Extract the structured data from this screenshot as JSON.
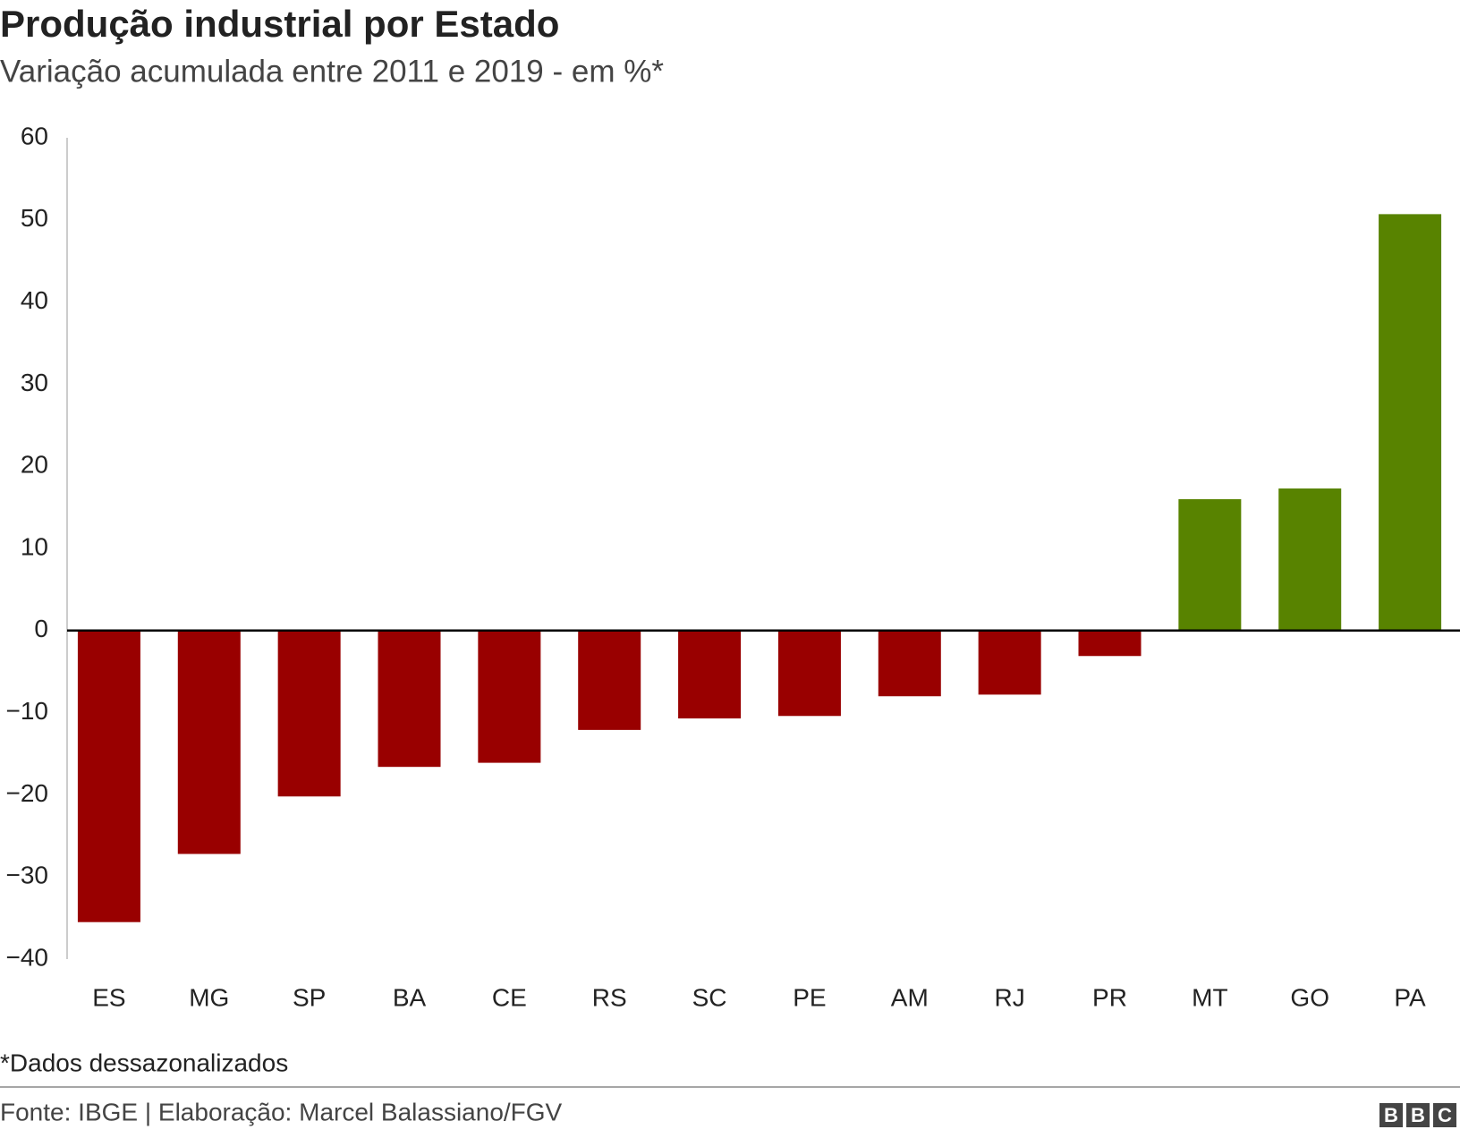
{
  "chart_data": {
    "type": "bar",
    "title": "Produção industrial por Estado",
    "subtitle": "Variação acumulada entre 2011 e 2019 - em %*",
    "categories": [
      "ES",
      "MG",
      "SP",
      "BA",
      "CE",
      "RS",
      "SC",
      "PE",
      "AM",
      "RJ",
      "PR",
      "MT",
      "GO",
      "PA"
    ],
    "values": [
      -35.5,
      -27.2,
      -20.2,
      -16.6,
      -16.1,
      -12.1,
      -10.7,
      -10.4,
      -8.0,
      -7.8,
      -3.1,
      16.0,
      17.3,
      50.7
    ],
    "colors": [
      "#990000",
      "#990000",
      "#990000",
      "#990000",
      "#990000",
      "#990000",
      "#990000",
      "#990000",
      "#990000",
      "#990000",
      "#990000",
      "#588300",
      "#588300",
      "#588300"
    ],
    "ylim": [
      -40,
      60
    ],
    "yticks": [
      {
        "value": -40,
        "label": "−40"
      },
      {
        "value": -30,
        "label": "−30"
      },
      {
        "value": -20,
        "label": "−20"
      },
      {
        "value": -10,
        "label": "−10"
      },
      0,
      10,
      20,
      30,
      40,
      50,
      60
    ],
    "grid": false,
    "note": "*Dados dessazonalizados",
    "source": "Fonte: IBGE | Elaboração: Marcel Balassiano/FGV",
    "logo": "BBC"
  }
}
